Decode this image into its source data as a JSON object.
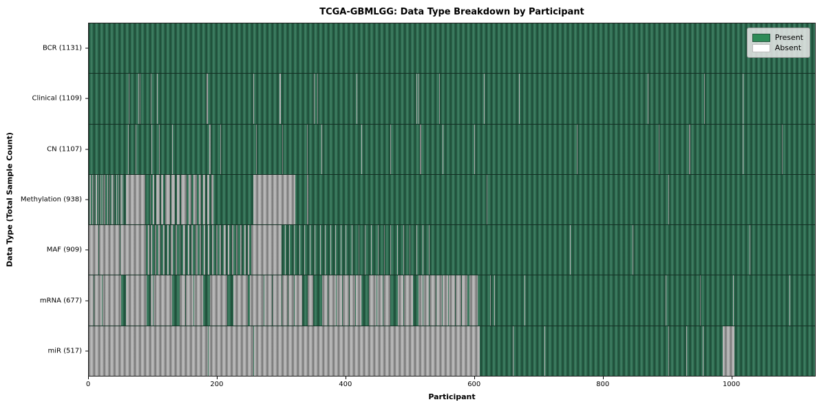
{
  "title": "TCGA-GBMLGG: Data Type Breakdown by Participant",
  "xlabel": "Participant",
  "ylabel": "Data Type (Total Sample Count)",
  "legend": {
    "present_label": "Present",
    "absent_label": "Absent"
  },
  "colors": {
    "present_legend": "#2e8b57",
    "present_row": "#2f7355",
    "absent_row": "#b6b6b6",
    "absent_legend": "#ffffff",
    "frame": "#1a1a1a"
  },
  "chart_data": {
    "type": "heatmap",
    "title": "TCGA-GBMLGG: Data Type Breakdown by Participant",
    "xlabel": "Participant",
    "ylabel": "Data Type (Total Sample Count)",
    "legend_entries": [
      "Present",
      "Absent"
    ],
    "legend_position": "upper right",
    "n_participants": 1131,
    "x_ticks": [
      0,
      200,
      400,
      600,
      800,
      1000
    ],
    "x_range": [
      0,
      1131
    ],
    "grid": false,
    "rows": [
      {
        "name": "bcr",
        "label": "BCR (1131)",
        "data_type": "BCR",
        "present_count": 1131,
        "absent_intervals": []
      },
      {
        "name": "clinical",
        "label": "Clinical (1109)",
        "data_type": "Clinical",
        "present_count": 1109,
        "absent_intervals": [
          [
            62,
            63
          ],
          [
            77,
            78
          ],
          [
            79,
            80
          ],
          [
            96,
            97
          ],
          [
            106,
            107
          ],
          [
            183,
            186
          ],
          [
            256,
            257
          ],
          [
            297,
            299
          ],
          [
            351,
            352
          ],
          [
            356,
            357
          ],
          [
            417,
            418
          ],
          [
            510,
            511
          ],
          [
            513,
            514
          ],
          [
            546,
            547
          ],
          [
            615,
            616
          ],
          [
            670,
            671
          ],
          [
            870,
            871
          ],
          [
            958,
            959
          ],
          [
            1018,
            1019
          ]
        ]
      },
      {
        "name": "cn",
        "label": "CN (1107)",
        "data_type": "CN",
        "present_count": 1107,
        "absent_intervals": [
          [
            61,
            62
          ],
          [
            73,
            74
          ],
          [
            98,
            99
          ],
          [
            109,
            110
          ],
          [
            130,
            131
          ],
          [
            188,
            190
          ],
          [
            205,
            206
          ],
          [
            261,
            262
          ],
          [
            301,
            302
          ],
          [
            340,
            341
          ],
          [
            362,
            363
          ],
          [
            424,
            425
          ],
          [
            470,
            471
          ],
          [
            516,
            518
          ],
          [
            551,
            552
          ],
          [
            600,
            601
          ],
          [
            760,
            761
          ],
          [
            888,
            889
          ],
          [
            935,
            937
          ],
          [
            1018,
            1019
          ],
          [
            1080,
            1081
          ]
        ]
      },
      {
        "name": "methylation",
        "label": "Methylation (938)",
        "data_type": "Methylation",
        "present_count": 938,
        "absent_intervals": [
          [
            1,
            3
          ],
          [
            5,
            6
          ],
          [
            8,
            9
          ],
          [
            11,
            13
          ],
          [
            15,
            16
          ],
          [
            18,
            19
          ],
          [
            21,
            22
          ],
          [
            24,
            26
          ],
          [
            29,
            30
          ],
          [
            32,
            33
          ],
          [
            35,
            37
          ],
          [
            39,
            40
          ],
          [
            43,
            44
          ],
          [
            46,
            47
          ],
          [
            49,
            51
          ],
          [
            53,
            54
          ],
          [
            58,
            88
          ],
          [
            95,
            97
          ],
          [
            100,
            102
          ],
          [
            105,
            110
          ],
          [
            113,
            116
          ],
          [
            119,
            126
          ],
          [
            129,
            134
          ],
          [
            137,
            141
          ],
          [
            144,
            152
          ],
          [
            155,
            160
          ],
          [
            163,
            168
          ],
          [
            171,
            175
          ],
          [
            178,
            181
          ],
          [
            184,
            188
          ],
          [
            191,
            194
          ],
          [
            256,
            322
          ],
          [
            340,
            342
          ],
          [
            620,
            621
          ],
          [
            903,
            904
          ]
        ]
      },
      {
        "name": "maf",
        "label": "MAF (909)",
        "data_type": "MAF",
        "present_count": 909,
        "absent_intervals": [
          [
            0,
            15
          ],
          [
            16,
            48
          ],
          [
            49,
            89
          ],
          [
            92,
            94
          ],
          [
            97,
            99
          ],
          [
            103,
            105
          ],
          [
            108,
            112
          ],
          [
            116,
            118
          ],
          [
            122,
            124
          ],
          [
            128,
            131
          ],
          [
            135,
            137
          ],
          [
            141,
            143
          ],
          [
            147,
            150
          ],
          [
            154,
            156
          ],
          [
            160,
            162
          ],
          [
            166,
            169
          ],
          [
            173,
            175
          ],
          [
            179,
            181
          ],
          [
            185,
            188
          ],
          [
            192,
            194
          ],
          [
            198,
            200
          ],
          [
            204,
            206
          ],
          [
            210,
            213
          ],
          [
            217,
            219
          ],
          [
            223,
            225
          ],
          [
            229,
            232
          ],
          [
            236,
            238
          ],
          [
            242,
            244
          ],
          [
            248,
            250
          ],
          [
            253,
            300
          ],
          [
            305,
            306
          ],
          [
            312,
            313
          ],
          [
            320,
            321
          ],
          [
            328,
            329
          ],
          [
            336,
            337
          ],
          [
            344,
            345
          ],
          [
            352,
            353
          ],
          [
            360,
            361
          ],
          [
            368,
            369
          ],
          [
            376,
            377
          ],
          [
            384,
            385
          ],
          [
            392,
            393
          ],
          [
            400,
            401
          ],
          [
            410,
            411
          ],
          [
            420,
            421
          ],
          [
            430,
            431
          ],
          [
            440,
            441
          ],
          [
            450,
            451
          ],
          [
            460,
            461
          ],
          [
            470,
            471
          ],
          [
            480,
            481
          ],
          [
            490,
            491
          ],
          [
            500,
            501
          ],
          [
            510,
            511
          ],
          [
            520,
            521
          ],
          [
            530,
            531
          ],
          [
            749,
            750
          ],
          [
            847,
            848
          ],
          [
            1029,
            1030
          ]
        ]
      },
      {
        "name": "mrna",
        "label": "mRNA (677)",
        "data_type": "mRNA",
        "present_count": 677,
        "absent_intervals": [
          [
            0,
            8
          ],
          [
            9,
            20
          ],
          [
            21,
            50
          ],
          [
            58,
            90
          ],
          [
            96,
            100
          ],
          [
            101,
            130
          ],
          [
            141,
            150
          ],
          [
            151,
            163
          ],
          [
            164,
            178
          ],
          [
            189,
            200
          ],
          [
            201,
            215
          ],
          [
            225,
            248
          ],
          [
            251,
            260
          ],
          [
            261,
            272
          ],
          [
            273,
            285
          ],
          [
            286,
            300
          ],
          [
            301,
            310
          ],
          [
            311,
            320
          ],
          [
            321,
            332
          ],
          [
            341,
            350
          ],
          [
            363,
            372
          ],
          [
            373,
            385
          ],
          [
            386,
            395
          ],
          [
            396,
            405
          ],
          [
            406,
            415
          ],
          [
            416,
            425
          ],
          [
            436,
            448
          ],
          [
            449,
            458
          ],
          [
            459,
            470
          ],
          [
            481,
            490
          ],
          [
            491,
            505
          ],
          [
            513,
            520
          ],
          [
            521,
            530
          ],
          [
            531,
            540
          ],
          [
            541,
            550
          ],
          [
            551,
            560
          ],
          [
            561,
            570
          ],
          [
            571,
            580
          ],
          [
            581,
            590
          ],
          [
            593,
            606
          ],
          [
            625,
            626
          ],
          [
            631,
            632
          ],
          [
            679,
            680
          ],
          [
            898,
            899
          ],
          [
            952,
            953
          ],
          [
            1003,
            1005
          ],
          [
            1091,
            1092
          ]
        ]
      },
      {
        "name": "mir",
        "label": "miR (517)",
        "data_type": "miR",
        "present_count": 517,
        "absent_intervals": [
          [
            0,
            185
          ],
          [
            186,
            256
          ],
          [
            257,
            609
          ],
          [
            660,
            661
          ],
          [
            710,
            711
          ],
          [
            903,
            904
          ],
          [
            930,
            931
          ],
          [
            956,
            957
          ],
          [
            987,
            1006
          ]
        ]
      }
    ]
  }
}
